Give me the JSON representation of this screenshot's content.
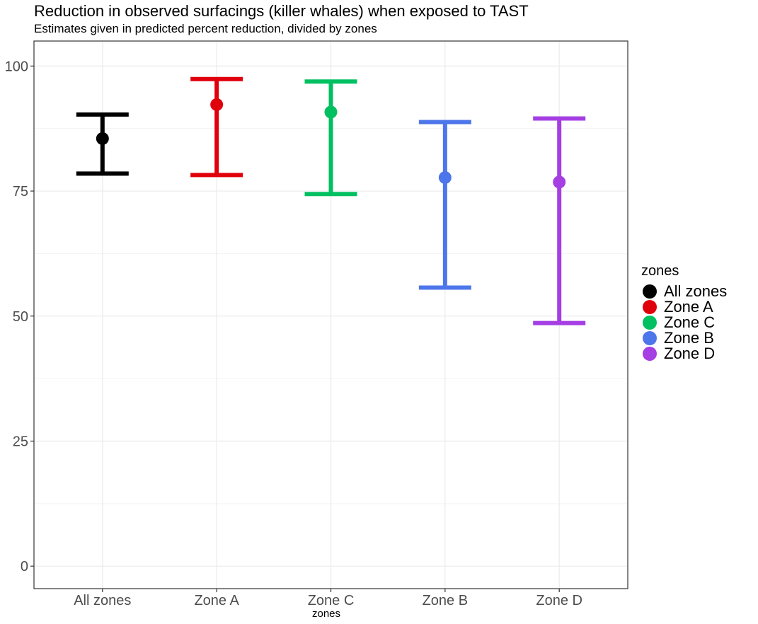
{
  "chart_data": {
    "type": "errorbar",
    "title": "Reduction in observed surfacings (killer whales) when exposed to TAST",
    "subtitle": "Estimates given in predicted percent reduction, divided by zones",
    "xlabel": "zones",
    "ylabel": "",
    "ylim": [
      -4.5,
      105
    ],
    "yticks": [
      0,
      25,
      50,
      75,
      100
    ],
    "grid": true,
    "legend_title": "zones",
    "legend_position": "right",
    "categories": [
      "All zones",
      "Zone A",
      "Zone C",
      "Zone B",
      "Zone D"
    ],
    "series": [
      {
        "name": "All zones",
        "estimate": 85.5,
        "lower": 78.5,
        "upper": 90.3,
        "color": "#000000"
      },
      {
        "name": "Zone A",
        "estimate": 92.3,
        "lower": 78.2,
        "upper": 97.4,
        "color": "#E0000B"
      },
      {
        "name": "Zone C",
        "estimate": 90.8,
        "lower": 74.4,
        "upper": 96.9,
        "color": "#00C062"
      },
      {
        "name": "Zone B",
        "estimate": 77.7,
        "lower": 55.7,
        "upper": 88.8,
        "color": "#4E76EB"
      },
      {
        "name": "Zone D",
        "estimate": 76.8,
        "lower": 48.6,
        "upper": 89.5,
        "color": "#A53EE3"
      }
    ]
  }
}
